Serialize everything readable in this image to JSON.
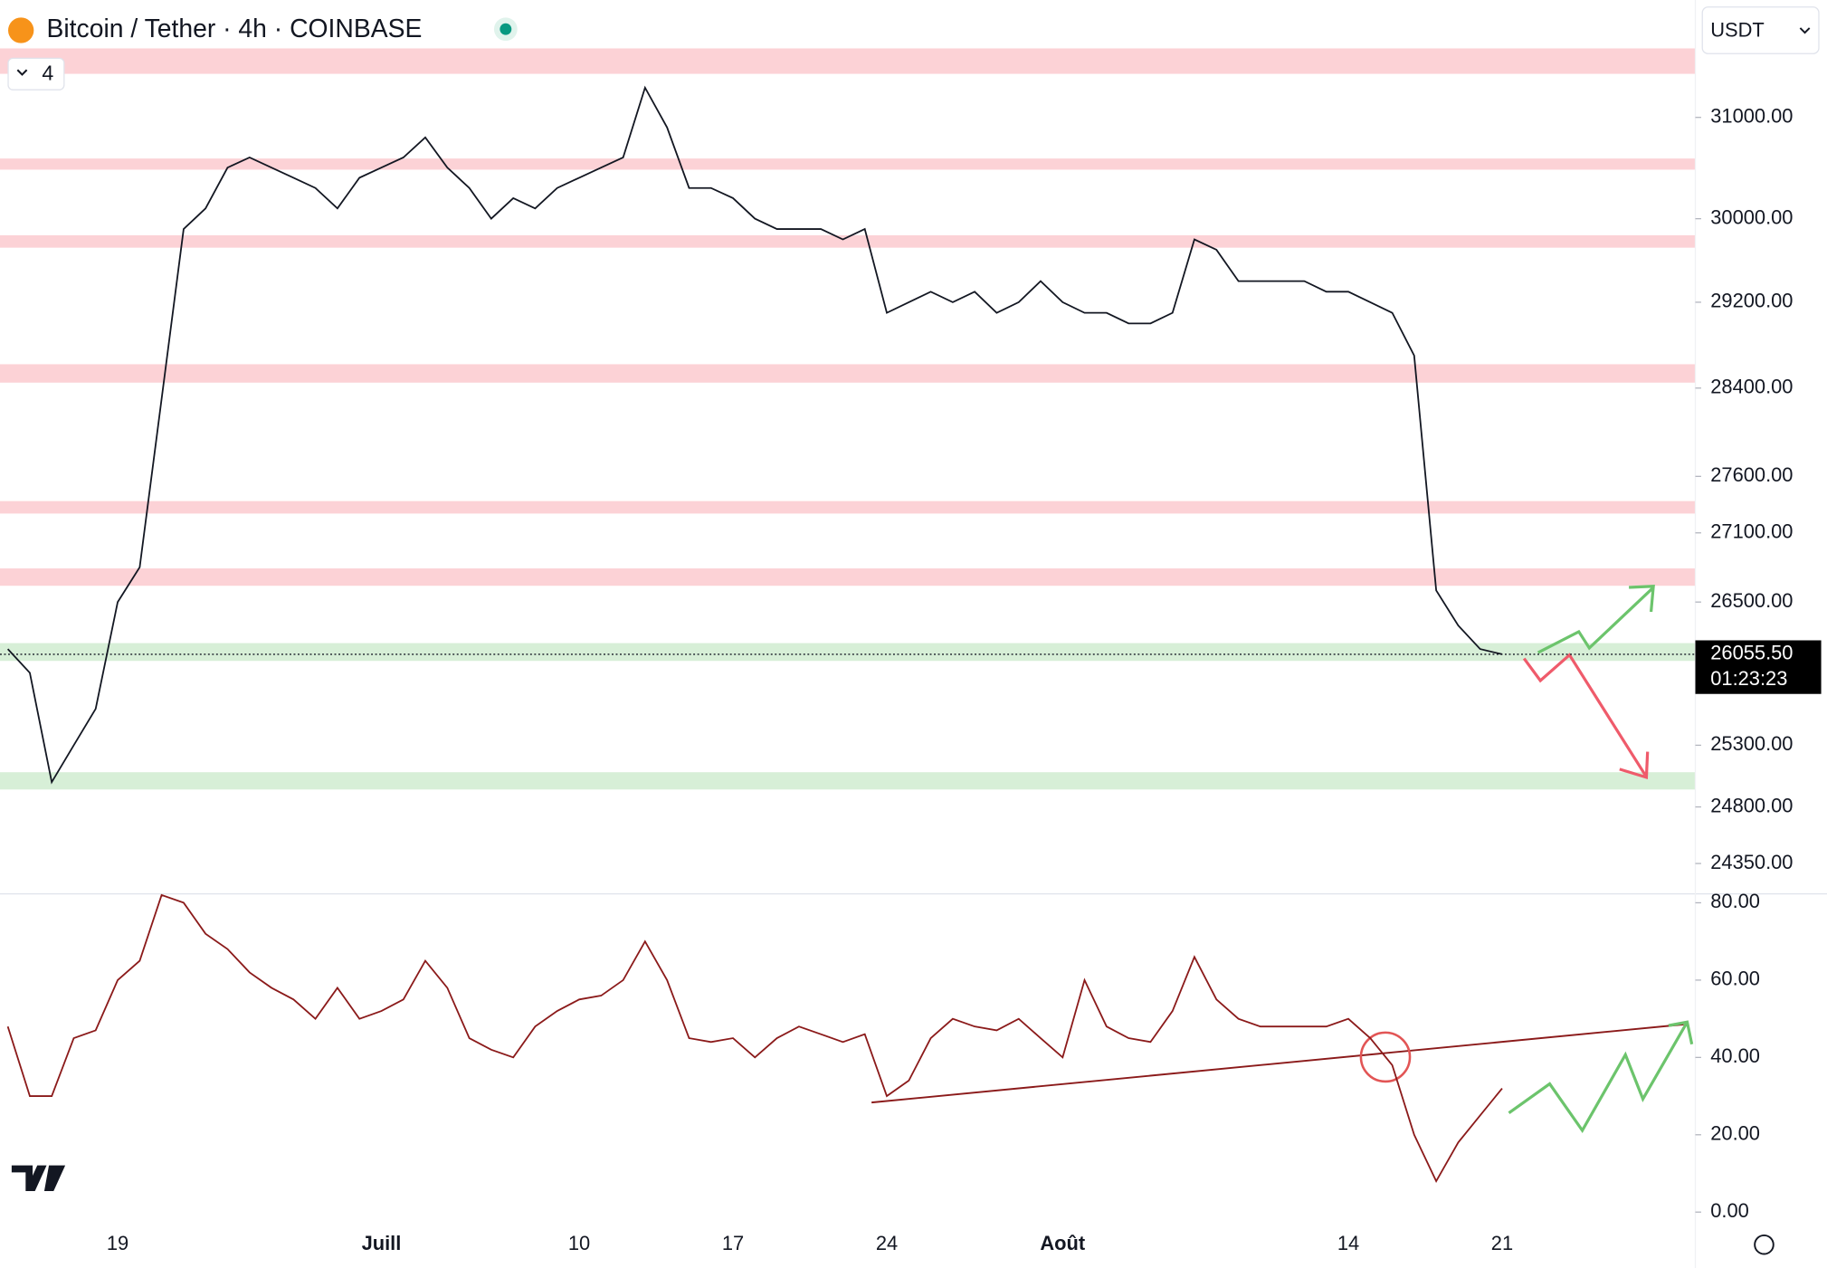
{
  "header": {
    "title": "Bitcoin / Tether · 4h · COINBASE",
    "indicators": "4",
    "currency": "USDT",
    "countdown": "01:23:23"
  },
  "chart_data": [
    {
      "type": "line",
      "color": "#131722",
      "log_scale": true,
      "categories": [
        null,
        null,
        null,
        null,
        null,
        "19",
        null,
        null,
        null,
        null,
        null,
        null,
        null,
        null,
        null,
        null,
        null,
        "Juill",
        null,
        null,
        null,
        null,
        null,
        null,
        null,
        null,
        "10",
        null,
        null,
        null,
        null,
        null,
        null,
        "17",
        null,
        null,
        null,
        null,
        null,
        null,
        "24",
        null,
        null,
        null,
        null,
        null,
        null,
        null,
        "Août",
        null,
        null,
        null,
        null,
        null,
        null,
        null,
        null,
        null,
        null,
        null,
        null,
        "14",
        null,
        null,
        null,
        null,
        null,
        null,
        "21"
      ],
      "values": [
        26100,
        25900,
        25000,
        25300,
        25600,
        26500,
        26800,
        28300,
        29900,
        30100,
        30500,
        30600,
        30500,
        30400,
        30300,
        30100,
        30400,
        30500,
        30600,
        30800,
        30500,
        30300,
        30000,
        30200,
        30100,
        30300,
        30400,
        30500,
        30600,
        31300,
        30900,
        30300,
        30300,
        30200,
        30000,
        29900,
        29900,
        29900,
        29800,
        29900,
        29100,
        29200,
        29300,
        29200,
        29300,
        29100,
        29200,
        29400,
        29200,
        29100,
        29100,
        29000,
        29000,
        29100,
        29800,
        29700,
        29400,
        29400,
        29400,
        29400,
        29300,
        29300,
        29200,
        29100,
        28700,
        26600,
        26300,
        26100,
        26055.5
      ],
      "ylim": [
        24130,
        32200
      ],
      "yticks": [
        {
          "value": 31000,
          "label": "31000.00"
        },
        {
          "value": 30000,
          "label": "30000.00"
        },
        {
          "value": 29200,
          "label": "29200.00"
        },
        {
          "value": 28400,
          "label": "28400.00"
        },
        {
          "value": 27600,
          "label": "27600.00"
        },
        {
          "value": 27100,
          "label": "27100.00"
        },
        {
          "value": 26500,
          "label": "26500.00"
        },
        {
          "value": 25300,
          "label": "25300.00"
        },
        {
          "value": 24800,
          "label": "24800.00"
        },
        {
          "value": 24350,
          "label": "24350.00"
        }
      ],
      "last_price": {
        "value": 26055.5,
        "label": "26055.50"
      },
      "resistance_zones": [
        [
          31440,
          31700
        ],
        [
          30480,
          30590
        ],
        [
          29720,
          29840
        ],
        [
          28450,
          28620
        ],
        [
          27270,
          27380
        ],
        [
          26640,
          26790
        ]
      ],
      "support_zones": [
        [
          26000,
          26150
        ],
        [
          24940,
          25080
        ]
      ],
      "resistance_color": "#fcd2d6",
      "support_color": "#d7efd7"
    },
    {
      "type": "line",
      "color": "#8b1a1a",
      "values": [
        48,
        30,
        30,
        45,
        47,
        60,
        65,
        82,
        80,
        72,
        68,
        62,
        58,
        55,
        50,
        58,
        50,
        52,
        55,
        65,
        58,
        45,
        42,
        40,
        48,
        52,
        55,
        56,
        60,
        70,
        60,
        45,
        44,
        45,
        40,
        45,
        48,
        46,
        44,
        46,
        30,
        34,
        45,
        50,
        48,
        47,
        50,
        45,
        40,
        60,
        48,
        45,
        44,
        52,
        66,
        55,
        50,
        48,
        48,
        48,
        48,
        50,
        45,
        38,
        20,
        8,
        18,
        25,
        32
      ],
      "ylim": [
        -3,
        82
      ],
      "yticks": [
        {
          "value": 80,
          "label": "80.00"
        },
        {
          "value": 60,
          "label": "60.00"
        },
        {
          "value": 40,
          "label": "40.00"
        },
        {
          "value": 20,
          "label": "20.00"
        },
        {
          "value": 0,
          "label": "0.00"
        }
      ]
    }
  ]
}
